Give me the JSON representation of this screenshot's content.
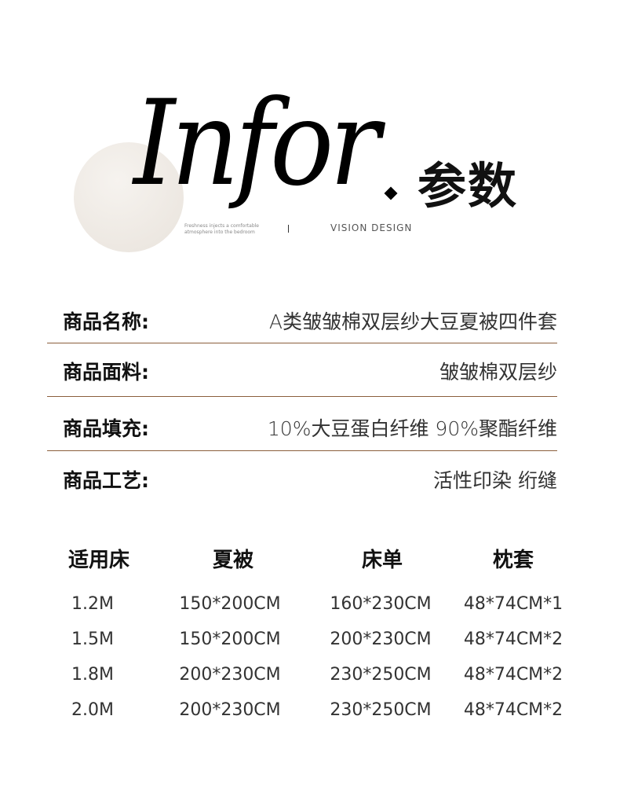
{
  "header": {
    "display_word": "Infor",
    "cn_title": "参数",
    "tagline": "Freshness injects a comfortable atmosphere into the bedroom",
    "vision": "VISION DESIGN"
  },
  "colors": {
    "divider": "#8b5e3c",
    "circle": "#ece6df"
  },
  "specs": [
    {
      "label": "商品名称:",
      "value": "A类皱皱棉双层纱大豆夏被四件套"
    },
    {
      "label": "商品面料:",
      "value": "皱皱棉双层纱"
    },
    {
      "label": "商品填充:",
      "value": "10%大豆蛋白纤维 90%聚酯纤维"
    },
    {
      "label": "商品工艺:",
      "value": "活性印染 绗缝"
    }
  ],
  "size_table": {
    "headers": [
      "适用床",
      "夏被",
      "床单",
      "枕套"
    ],
    "rows": [
      [
        "1.2M",
        "150*200CM",
        "160*230CM",
        "48*74CM*1"
      ],
      [
        "1.5M",
        "150*200CM",
        "200*230CM",
        "48*74CM*2"
      ],
      [
        "1.8M",
        "200*230CM",
        "230*250CM",
        "48*74CM*2"
      ],
      [
        "2.0M",
        "200*230CM",
        "230*250CM",
        "48*74CM*2"
      ]
    ]
  }
}
